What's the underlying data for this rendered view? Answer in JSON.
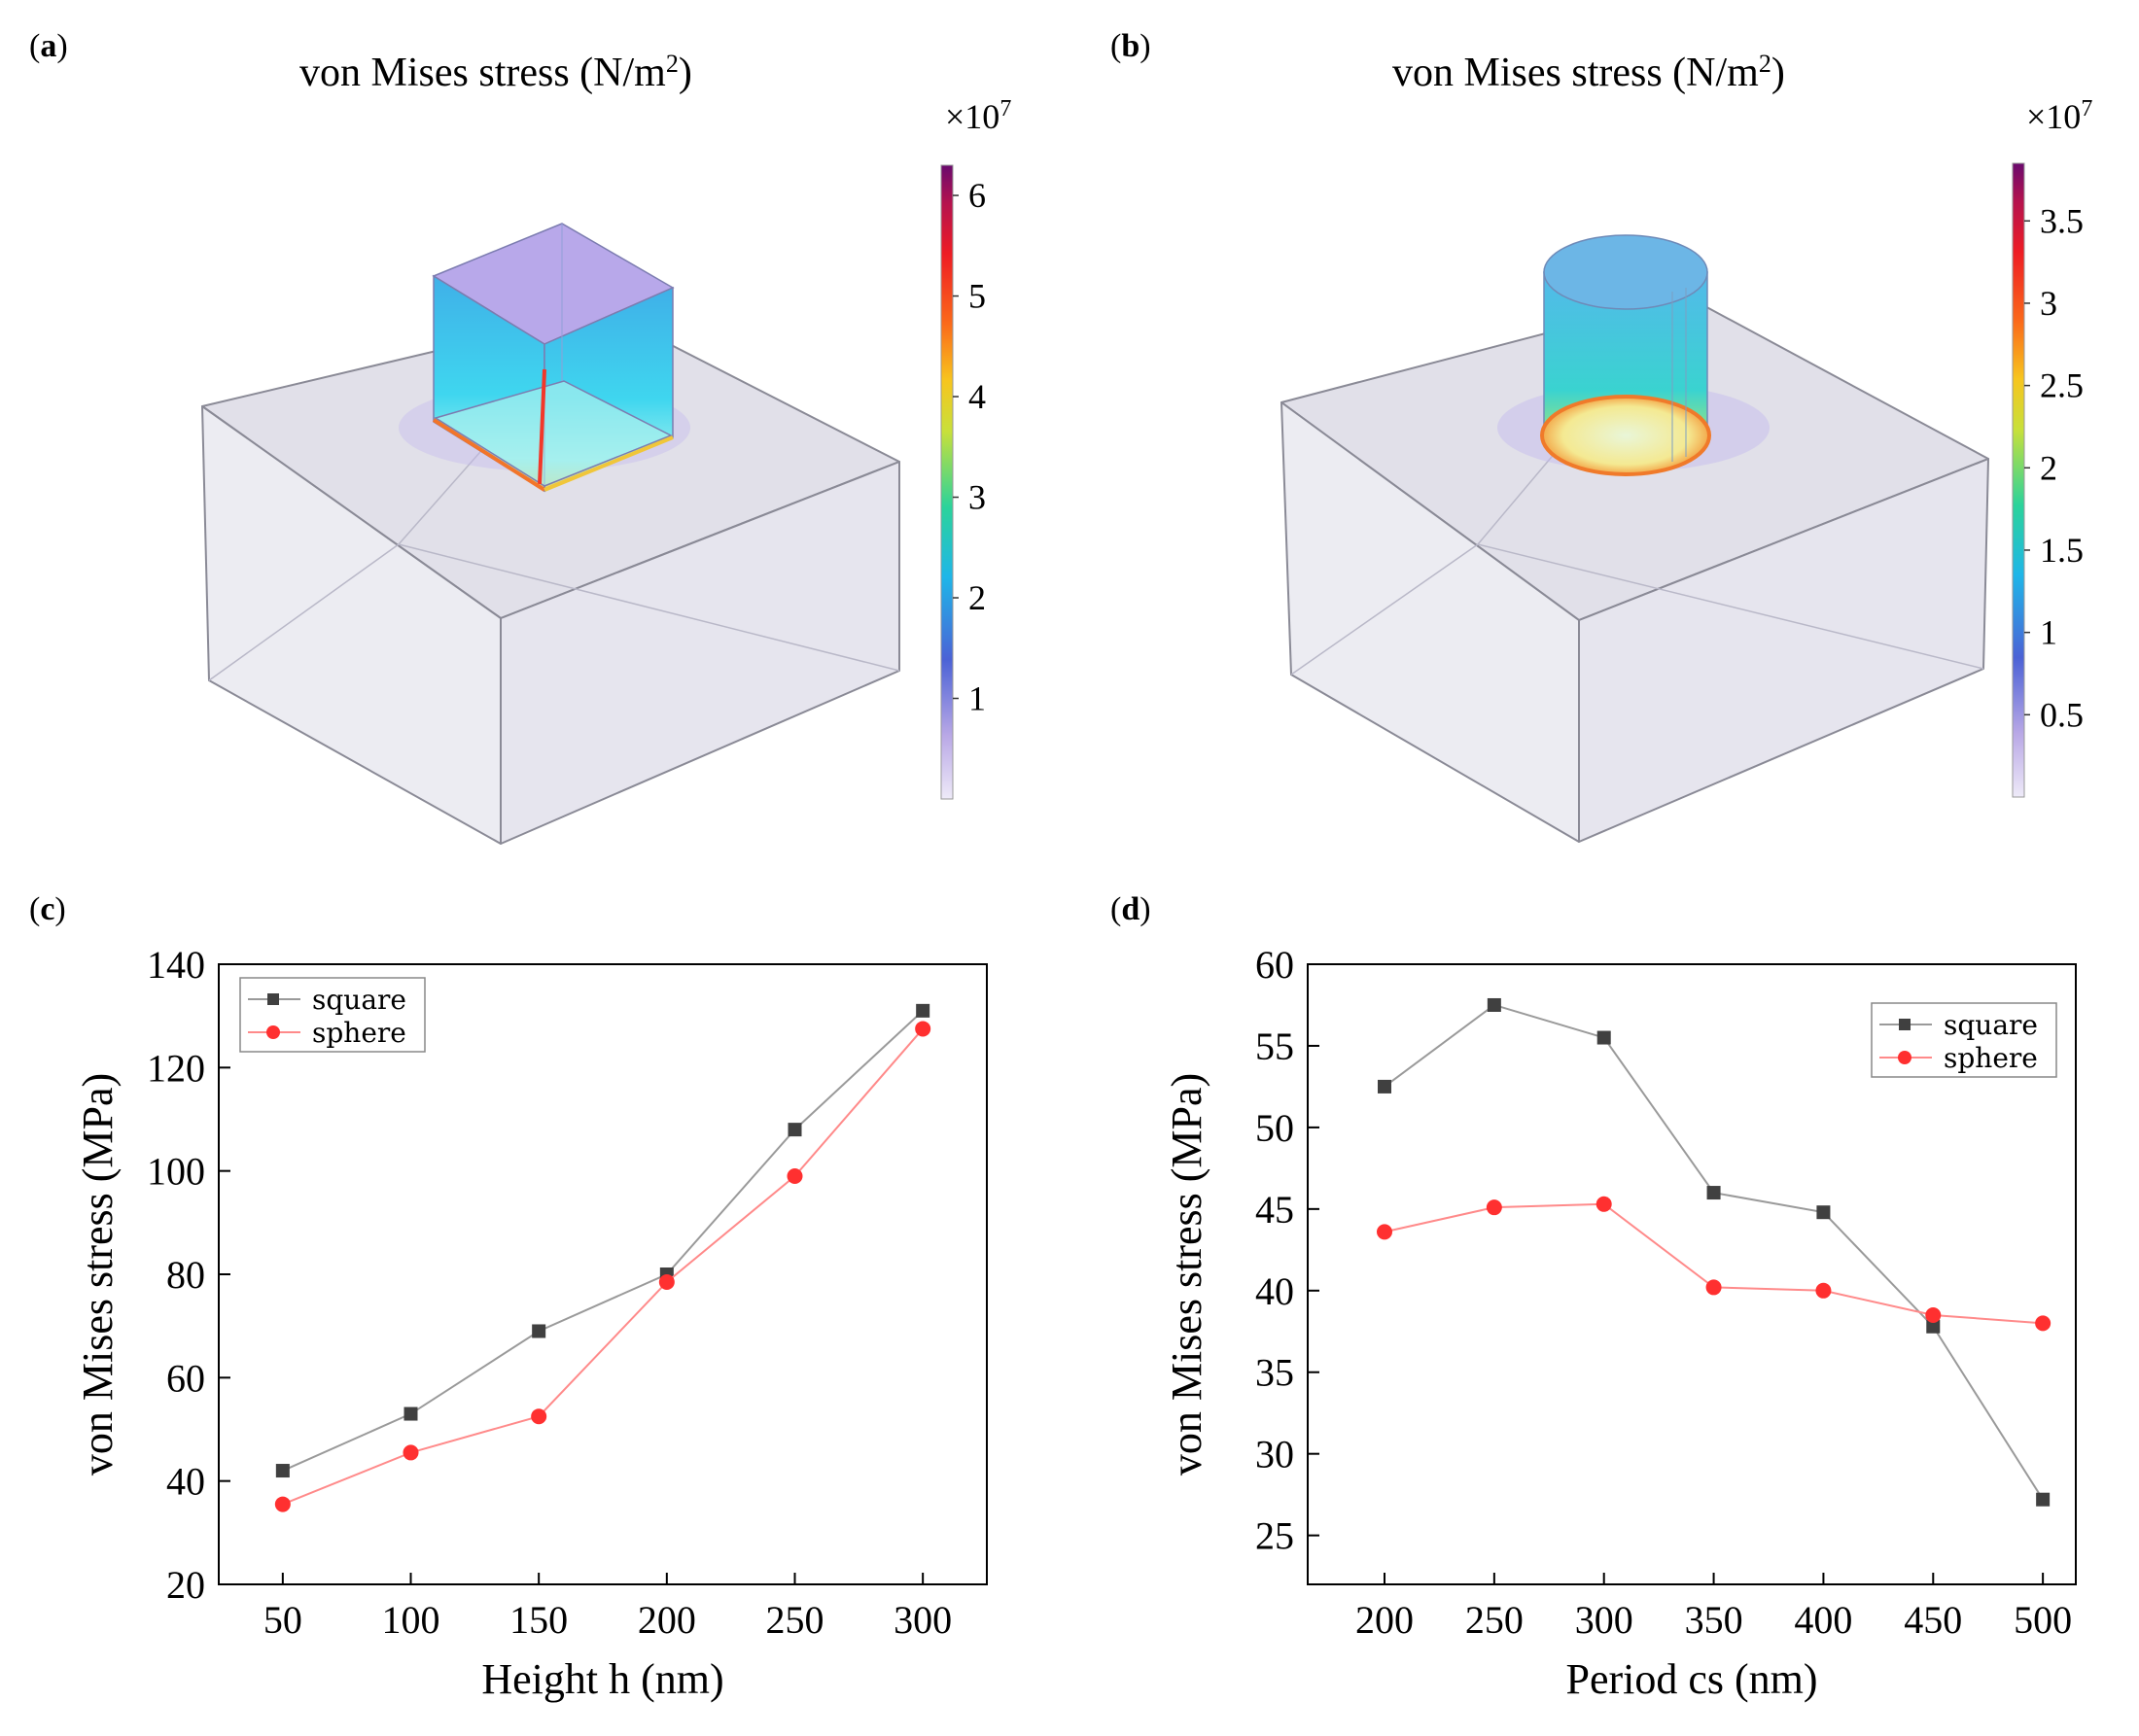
{
  "panels": {
    "a": {
      "tag": "a",
      "title": "von Mises stress (N/m",
      "title_sup": "2",
      "title_end": ")",
      "multiplier": "×10",
      "multiplier_exp": "7",
      "colorbar_ticks": [
        "1",
        "2",
        "3",
        "4",
        "5",
        "6"
      ],
      "colorbar_max": 6.3,
      "shape": "square pillar"
    },
    "b": {
      "tag": "b",
      "title": "von Mises stress (N/m",
      "title_sup": "2",
      "title_end": ")",
      "multiplier": "×10",
      "multiplier_exp": "7",
      "colorbar_ticks": [
        "0.5",
        "1",
        "1.5",
        "2",
        "2.5",
        "3",
        "3.5"
      ],
      "colorbar_max": 3.85,
      "shape": "cylinder pillar"
    },
    "c": {
      "tag": "c"
    },
    "d": {
      "tag": "d"
    }
  },
  "colors": {
    "square": "#404040",
    "sphere": "#ff3030",
    "square_line": "#9a9a9a",
    "sphere_line": "#ff8a8a"
  },
  "chart_data": [
    {
      "type": "line",
      "panel": "c",
      "xlabel": "Height h (nm)",
      "ylabel": "von Mises stress (MPa)",
      "x": [
        50,
        100,
        150,
        200,
        250,
        300
      ],
      "xticks": [
        50,
        100,
        150,
        200,
        250,
        300
      ],
      "xlim": [
        25,
        325
      ],
      "ylim": [
        20,
        140
      ],
      "yticks": [
        20,
        40,
        60,
        80,
        100,
        120,
        140
      ],
      "legend": "top-left",
      "series": [
        {
          "name": "square",
          "marker": "square",
          "values": [
            42,
            53,
            69,
            80,
            108,
            131
          ]
        },
        {
          "name": "sphere",
          "marker": "circle",
          "values": [
            35.5,
            45.5,
            52.5,
            78.5,
            99,
            127.5
          ]
        }
      ]
    },
    {
      "type": "line",
      "panel": "d",
      "xlabel": "Period cs (nm)",
      "ylabel": "von Mises stress (MPa)",
      "x": [
        200,
        250,
        300,
        350,
        400,
        450,
        500
      ],
      "xticks": [
        200,
        250,
        300,
        350,
        400,
        450,
        500
      ],
      "xlim": [
        165,
        515
      ],
      "ylim": [
        22,
        60
      ],
      "yticks": [
        25,
        30,
        35,
        40,
        45,
        50,
        55,
        60
      ],
      "legend": "top-right",
      "series": [
        {
          "name": "square",
          "marker": "square",
          "values": [
            52.5,
            57.5,
            55.5,
            46,
            44.8,
            37.8,
            27.2
          ]
        },
        {
          "name": "sphere",
          "marker": "circle",
          "values": [
            43.6,
            45.1,
            45.3,
            40.2,
            40,
            38.5,
            38
          ]
        }
      ]
    }
  ]
}
